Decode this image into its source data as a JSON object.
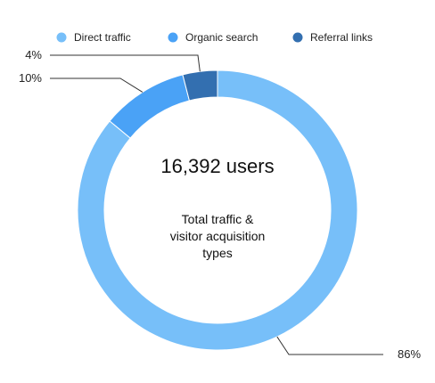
{
  "chart_data": {
    "type": "pie",
    "variant": "donut",
    "categories": [
      "Direct traffic",
      "Organic search",
      "Referral links"
    ],
    "values": [
      86,
      10,
      4
    ],
    "value_labels": [
      "86%",
      "10%",
      "4%"
    ],
    "colors": [
      "#77bff9",
      "#4aa2f6",
      "#336fb0"
    ],
    "legend_position": "top",
    "center": {
      "total": "16,392 users",
      "caption_lines": [
        "Total traffic &",
        "visitor acquisition",
        "types"
      ]
    }
  }
}
